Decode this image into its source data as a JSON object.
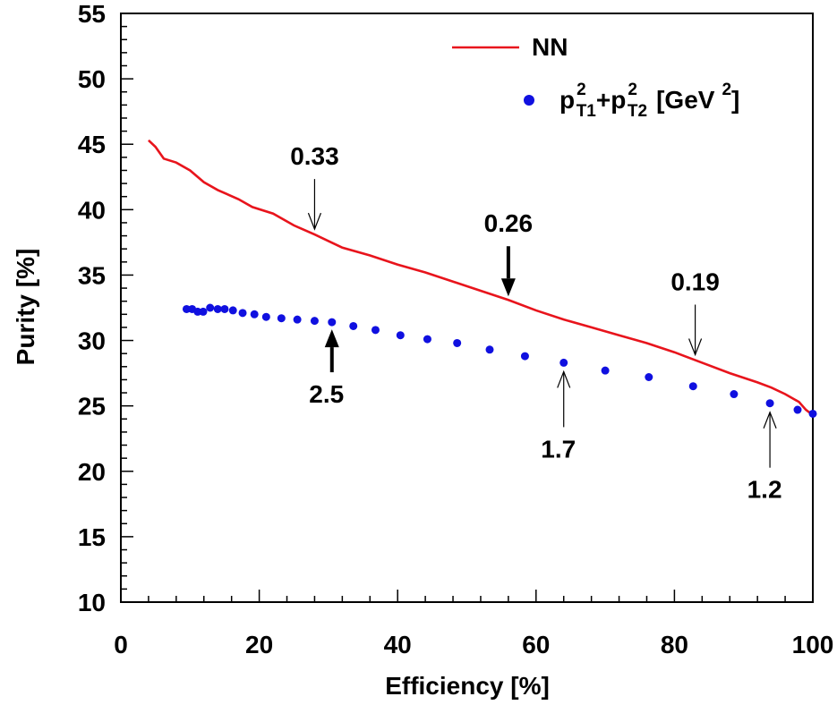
{
  "chart_data": {
    "type": "line",
    "xlabel": "Efficiency [%]",
    "ylabel": "Purity [%]",
    "xlim": [
      0,
      100
    ],
    "ylim": [
      10,
      55
    ],
    "x_ticks": [
      "0",
      "20",
      "40",
      "60",
      "80",
      "100"
    ],
    "y_ticks": [
      "10",
      "15",
      "20",
      "25",
      "30",
      "35",
      "40",
      "45",
      "50",
      "55"
    ],
    "legend_position": "top-right",
    "series": [
      {
        "name": "NN",
        "type": "line",
        "color": "#e8141c",
        "x": [
          4,
          5,
          6.2,
          8,
          10,
          12,
          14,
          17,
          19,
          22,
          25,
          28,
          30,
          32,
          36,
          40,
          44,
          48,
          52,
          56,
          60,
          64,
          68,
          72,
          76,
          80,
          84,
          88,
          92,
          94,
          96,
          98,
          99,
          100
        ],
        "y": [
          45.3,
          44.8,
          43.9,
          43.6,
          43.0,
          42.1,
          41.5,
          40.8,
          40.2,
          39.7,
          38.8,
          38.1,
          37.6,
          37.1,
          36.5,
          35.8,
          35.2,
          34.5,
          33.8,
          33.1,
          32.3,
          31.6,
          31.0,
          30.4,
          29.8,
          29.1,
          28.3,
          27.5,
          26.8,
          26.4,
          25.9,
          25.3,
          24.7,
          24.3
        ]
      },
      {
        "name": "p_T1^2+p_T2^2 [GeV^2]",
        "type": "scatter",
        "color": "#1010e0",
        "x": [
          9.5,
          10.3,
          11.1,
          11.9,
          12.9,
          14,
          15,
          16.2,
          17.6,
          19.3,
          21,
          23.2,
          25.5,
          28,
          30.5,
          33.6,
          36.8,
          40.4,
          44.3,
          48.6,
          53.3,
          58.4,
          64,
          70,
          76.3,
          82.7,
          88.6,
          93.8,
          97.8,
          100
        ],
        "y": [
          32.4,
          32.4,
          32.2,
          32.2,
          32.5,
          32.4,
          32.4,
          32.3,
          32.1,
          32.0,
          31.8,
          31.7,
          31.6,
          31.5,
          31.4,
          31.1,
          30.8,
          30.4,
          30.1,
          29.8,
          29.3,
          28.8,
          28.3,
          27.7,
          27.2,
          26.5,
          25.9,
          25.2,
          24.7,
          24.4
        ]
      }
    ],
    "legend": [
      {
        "label": "NN"
      },
      {
        "label_base": "p",
        "sup1": "2",
        "sub1": "T1",
        "plus": "+",
        "label_base2": "p",
        "sup2": "2",
        "sub2": "T2",
        "units_prefix": "[GeV",
        "units_sup": "2",
        "units_suffix": "]"
      }
    ],
    "annotations": [
      {
        "label": "0.33",
        "series": "NN",
        "x": 28,
        "style": "thin",
        "dir": "down"
      },
      {
        "label": "0.26",
        "series": "NN",
        "x": 56,
        "style": "bold",
        "dir": "down"
      },
      {
        "label": "0.19",
        "series": "NN",
        "x": 83,
        "style": "thin",
        "dir": "down"
      },
      {
        "label": "2.5",
        "series": "pt",
        "x": 30.5,
        "style": "bold",
        "dir": "up"
      },
      {
        "label": "1.7",
        "series": "pt",
        "x": 64,
        "style": "thin",
        "dir": "up"
      },
      {
        "label": "1.2",
        "series": "pt",
        "x": 93.8,
        "style": "thin",
        "dir": "up"
      }
    ]
  }
}
